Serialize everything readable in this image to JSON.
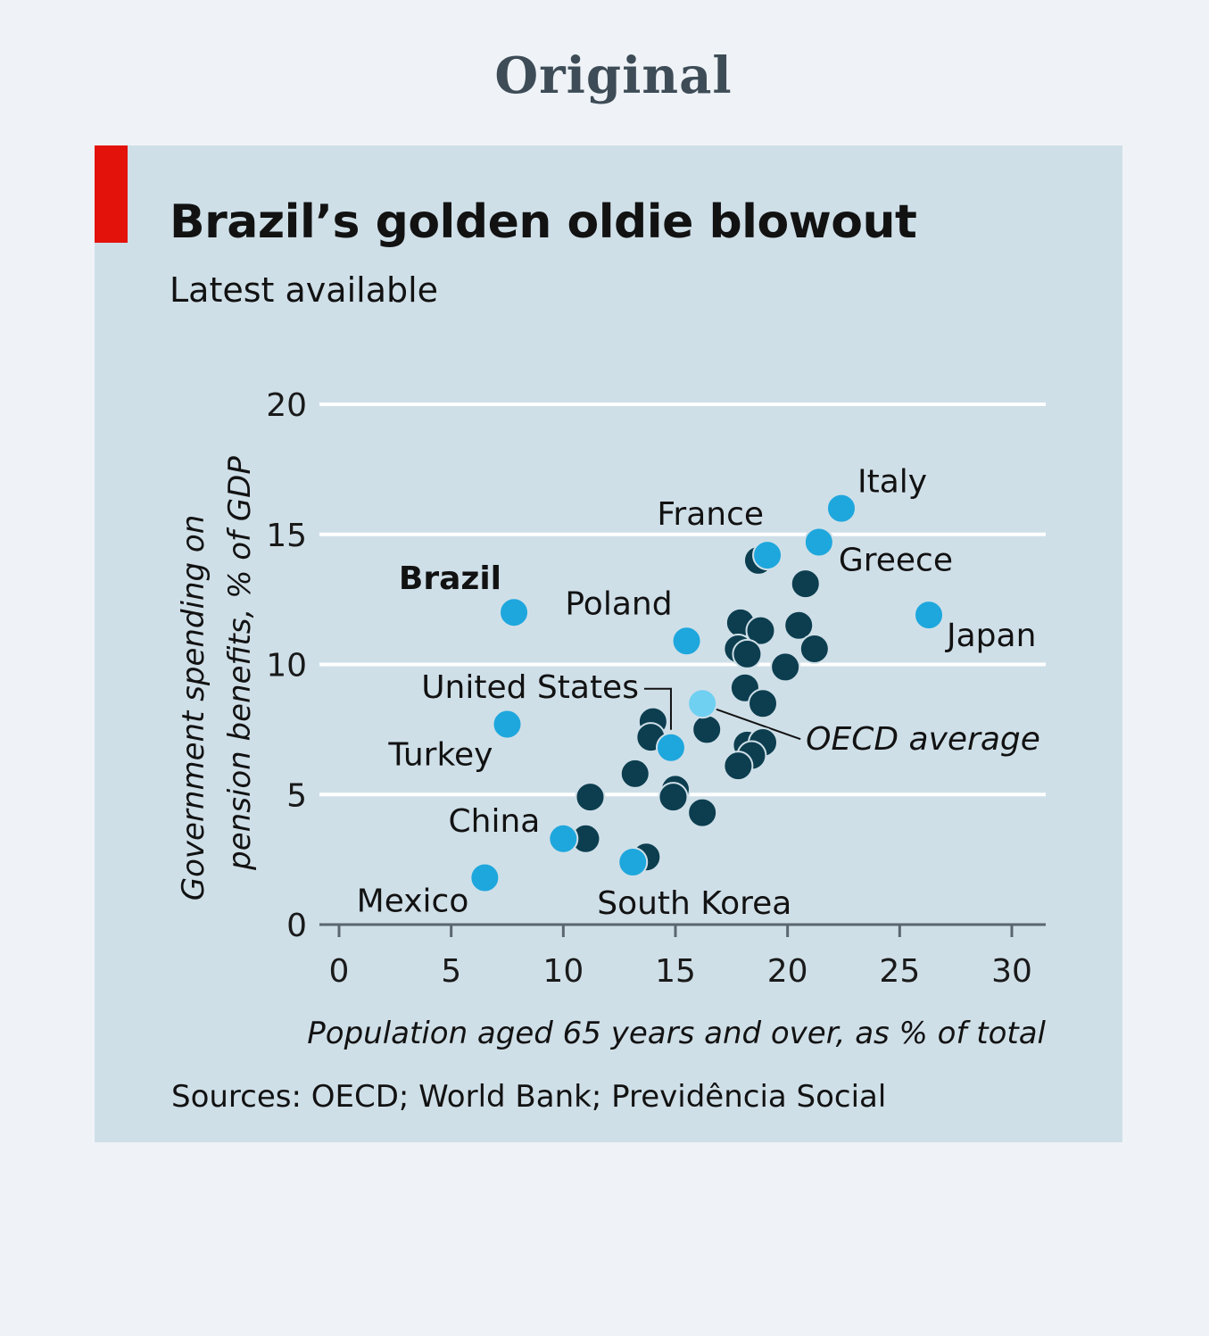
{
  "heading": "Original",
  "chart_data": {
    "type": "scatter",
    "title": "Brazil’s golden oldie blowout",
    "subtitle": "Latest available",
    "xlabel": "Population aged 65 years and over, as % of total",
    "ylabel_line1": "Government spending on",
    "ylabel_line2": "pension benefits, % of GDP",
    "xlim": [
      0,
      31
    ],
    "ylim": [
      0,
      20
    ],
    "xticks": [
      "0",
      "5",
      "10",
      "15",
      "20",
      "25",
      "30"
    ],
    "yticks": [
      "0",
      "5",
      "10",
      "15",
      "20"
    ],
    "grid": "horizontal",
    "colors": {
      "highlight": "#1ea7dd",
      "other": "#0c3e4f",
      "average": "#6fd0f2",
      "background": "#cfdfe8"
    },
    "highlighted": [
      {
        "label": "Brazil",
        "x": 7.8,
        "y": 12.0,
        "bold": true
      },
      {
        "label": "Italy",
        "x": 22.4,
        "y": 16.0
      },
      {
        "label": "Greece",
        "x": 21.4,
        "y": 14.7
      },
      {
        "label": "France",
        "x": 19.1,
        "y": 14.2
      },
      {
        "label": "Poland",
        "x": 15.5,
        "y": 10.9
      },
      {
        "label": "Japan",
        "x": 26.3,
        "y": 11.9
      },
      {
        "label": "United States",
        "x": 14.8,
        "y": 6.8
      },
      {
        "label": "Turkey",
        "x": 7.5,
        "y": 7.7
      },
      {
        "label": "China",
        "x": 10.0,
        "y": 3.3
      },
      {
        "label": "Mexico",
        "x": 6.5,
        "y": 1.8
      },
      {
        "label": "South Korea",
        "x": 13.1,
        "y": 2.4
      }
    ],
    "average": {
      "label": "OECD average",
      "x": 16.2,
      "y": 8.5
    },
    "others": [
      [
        18.7,
        14.0
      ],
      [
        20.8,
        13.1
      ],
      [
        17.9,
        11.6
      ],
      [
        18.8,
        11.3
      ],
      [
        20.5,
        11.5
      ],
      [
        17.8,
        10.6
      ],
      [
        18.2,
        10.4
      ],
      [
        21.2,
        10.6
      ],
      [
        19.9,
        9.9
      ],
      [
        18.1,
        9.1
      ],
      [
        18.9,
        8.5
      ],
      [
        14.0,
        7.8
      ],
      [
        13.9,
        7.2
      ],
      [
        16.4,
        7.5
      ],
      [
        18.2,
        6.9
      ],
      [
        18.9,
        7.0
      ],
      [
        18.4,
        6.5
      ],
      [
        17.8,
        6.1
      ],
      [
        13.2,
        5.8
      ],
      [
        11.2,
        4.9
      ],
      [
        15.0,
        5.2
      ],
      [
        14.9,
        4.9
      ],
      [
        16.2,
        4.3
      ],
      [
        11.0,
        3.3
      ],
      [
        13.7,
        2.6
      ]
    ],
    "source": "Sources: OECD; World Bank; Previdência Social"
  }
}
